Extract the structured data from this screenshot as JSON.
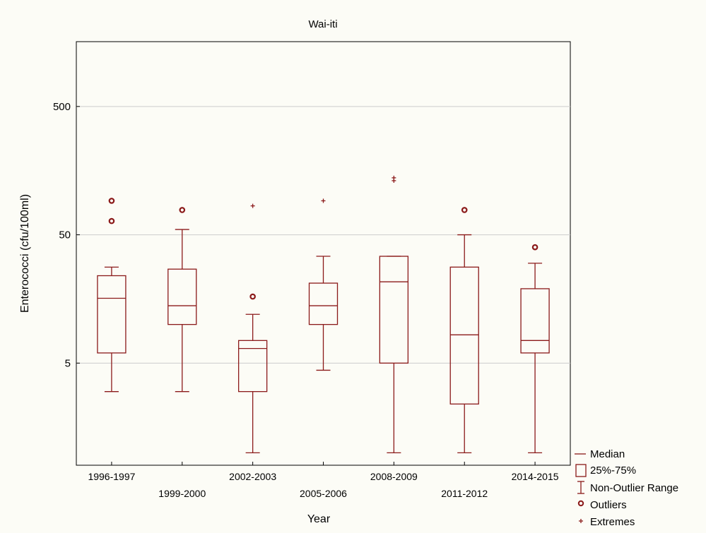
{
  "chart_data": {
    "type": "boxplot",
    "title": "Wai-iti",
    "xlabel": "Year",
    "ylabel": "Enterococci (cfu/100ml)",
    "yscale": "log",
    "ylim": [
      0.8,
      1600
    ],
    "yticks": [
      5,
      50,
      500
    ],
    "categories": [
      "1996-1997",
      "1999-2000",
      "2002-2003",
      "2005-2006",
      "2008-2009",
      "2011-2012",
      "2014-2015"
    ],
    "boxes": [
      {
        "category": "1996-1997",
        "whisker_low": 3,
        "q1": 6,
        "median": 16,
        "q3": 24,
        "whisker_high": 28,
        "outliers": [
          64,
          92
        ],
        "extremes": []
      },
      {
        "category": "1999-2000",
        "whisker_low": 3,
        "q1": 10,
        "median": 14,
        "q3": 27,
        "whisker_high": 55,
        "outliers": [
          78
        ],
        "extremes": []
      },
      {
        "category": "2002-2003",
        "whisker_low": 1,
        "q1": 3,
        "median": 6.5,
        "q3": 7.5,
        "whisker_high": 12,
        "outliers": [
          16.5
        ],
        "extremes": [
          84
        ]
      },
      {
        "category": "2005-2006",
        "whisker_low": 4.4,
        "q1": 10,
        "median": 14,
        "q3": 21,
        "whisker_high": 34,
        "outliers": [],
        "extremes": [
          92
        ]
      },
      {
        "category": "2008-2009",
        "whisker_low": 1,
        "q1": 5,
        "median": 21.5,
        "q3": 34,
        "whisker_high": 34,
        "outliers": [],
        "extremes": [
          132,
          139
        ]
      },
      {
        "category": "2011-2012",
        "whisker_low": 1,
        "q1": 2.4,
        "median": 8.3,
        "q3": 28,
        "whisker_high": 50,
        "outliers": [
          78
        ],
        "extremes": []
      },
      {
        "category": "2014-2015",
        "whisker_low": 1,
        "q1": 6,
        "median": 7.5,
        "q3": 19,
        "whisker_high": 30,
        "outliers": [
          40
        ],
        "extremes": []
      }
    ],
    "grid": true,
    "legend_position": "bottom-right",
    "legend": [
      "Median",
      "25%-75%",
      "Non-Outlier Range",
      "Outliers",
      "Extremes"
    ],
    "color": "#8b1a1a"
  }
}
